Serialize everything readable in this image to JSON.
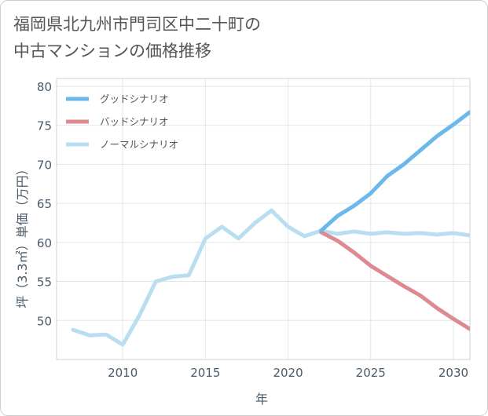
{
  "title_lines": [
    "福岡県北九州市門司区中二十町の",
    "中古マンションの価格推移"
  ],
  "chart_data": {
    "type": "line",
    "title": "福岡県北九州市門司区中二十町の中古マンションの価格推移",
    "xlabel": "年",
    "ylabel": "坪（3.3㎡）単価（万円）",
    "xlim": [
      2006,
      2031
    ],
    "ylim": [
      45,
      81
    ],
    "xticks": [
      2010,
      2015,
      2020,
      2025,
      2030
    ],
    "yticks": [
      50,
      55,
      60,
      65,
      70,
      75,
      80
    ],
    "legend_position": "top-left",
    "series": [
      {
        "name": "グッドシナリオ",
        "color": "#6cb8ea",
        "x": [
          2022,
          2023,
          2024,
          2025,
          2026,
          2027,
          2028,
          2029,
          2030,
          2031
        ],
        "y": [
          61.5,
          63.4,
          64.7,
          66.3,
          68.5,
          70.0,
          71.8,
          73.6,
          75.1,
          76.7
        ]
      },
      {
        "name": "バッドシナリオ",
        "color": "#dd8a92",
        "x": [
          2022,
          2023,
          2024,
          2025,
          2026,
          2027,
          2028,
          2029,
          2030,
          2031
        ],
        "y": [
          61.3,
          60.2,
          58.7,
          57.0,
          55.7,
          54.4,
          53.2,
          51.6,
          50.2,
          48.9
        ]
      },
      {
        "name": "ノーマルシナリオ",
        "color": "#b9def0",
        "x": [
          2007,
          2008,
          2009,
          2010,
          2011,
          2012,
          2013,
          2014,
          2015,
          2016,
          2017,
          2018,
          2019,
          2020,
          2021,
          2022,
          2023,
          2024,
          2025,
          2026,
          2027,
          2028,
          2029,
          2030,
          2031
        ],
        "y": [
          48.8,
          48.1,
          48.2,
          46.9,
          50.6,
          55.0,
          55.6,
          55.8,
          60.5,
          62.0,
          60.5,
          62.5,
          64.1,
          62.0,
          60.8,
          61.5,
          61.1,
          61.4,
          61.1,
          61.3,
          61.1,
          61.2,
          61.0,
          61.2,
          60.9
        ]
      }
    ]
  }
}
